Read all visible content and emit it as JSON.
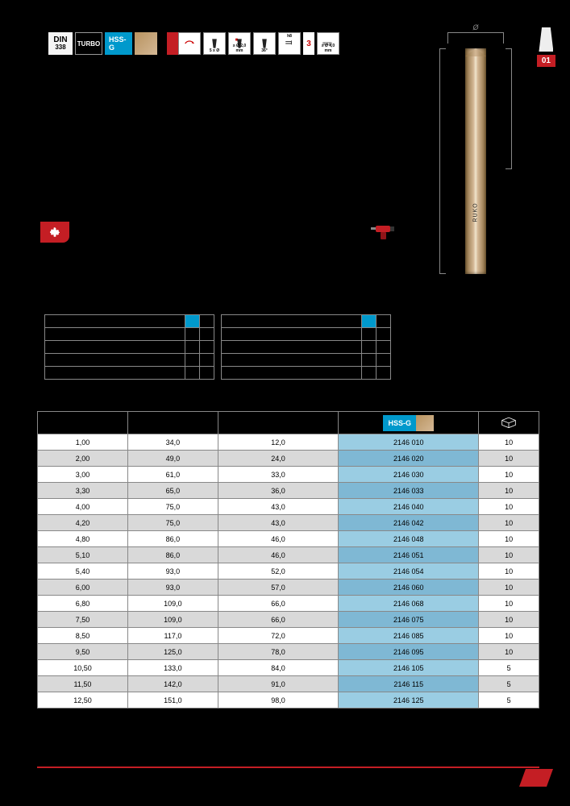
{
  "page_number": "01",
  "badges": {
    "din_top": "DIN",
    "din_bottom": "338",
    "turbo": "TURBO",
    "hssg": "HSS-G",
    "sub_5xo": "5 x Ø",
    "sub_20": "≥ Ø 2,0 mm",
    "sub_36": "36°",
    "sub_h8": "h8",
    "sub_40": "≥ Ø 4,0 mm",
    "sub_3": "3"
  },
  "drill": {
    "dia_label": "Ø",
    "brand": "RUKO"
  },
  "main_table": {
    "header_hssg": "HSS-G",
    "columns_width": [
      "18%",
      "18%",
      "24%",
      "28%",
      "12%"
    ],
    "rows": [
      {
        "d": "1,00",
        "l1": "34,0",
        "l2": "12,0",
        "ord": "2146 010",
        "pack": "10"
      },
      {
        "d": "2,00",
        "l1": "49,0",
        "l2": "24,0",
        "ord": "2146 020",
        "pack": "10"
      },
      {
        "d": "3,00",
        "l1": "61,0",
        "l2": "33,0",
        "ord": "2146 030",
        "pack": "10"
      },
      {
        "d": "3,30",
        "l1": "65,0",
        "l2": "36,0",
        "ord": "2146 033",
        "pack": "10"
      },
      {
        "d": "4,00",
        "l1": "75,0",
        "l2": "43,0",
        "ord": "2146 040",
        "pack": "10"
      },
      {
        "d": "4,20",
        "l1": "75,0",
        "l2": "43,0",
        "ord": "2146 042",
        "pack": "10"
      },
      {
        "d": "4,80",
        "l1": "86,0",
        "l2": "46,0",
        "ord": "2146 048",
        "pack": "10"
      },
      {
        "d": "5,10",
        "l1": "86,0",
        "l2": "46,0",
        "ord": "2146 051",
        "pack": "10"
      },
      {
        "d": "5,40",
        "l1": "93,0",
        "l2": "52,0",
        "ord": "2146 054",
        "pack": "10"
      },
      {
        "d": "6,00",
        "l1": "93,0",
        "l2": "57,0",
        "ord": "2146 060",
        "pack": "10"
      },
      {
        "d": "6,80",
        "l1": "109,0",
        "l2": "66,0",
        "ord": "2146 068",
        "pack": "10"
      },
      {
        "d": "7,50",
        "l1": "109,0",
        "l2": "66,0",
        "ord": "2146 075",
        "pack": "10"
      },
      {
        "d": "8,50",
        "l1": "117,0",
        "l2": "72,0",
        "ord": "2146 085",
        "pack": "10"
      },
      {
        "d": "9,50",
        "l1": "125,0",
        "l2": "78,0",
        "ord": "2146 095",
        "pack": "10"
      },
      {
        "d": "10,50",
        "l1": "133,0",
        "l2": "84,0",
        "ord": "2146 105",
        "pack": "5"
      },
      {
        "d": "11,50",
        "l1": "142,0",
        "l2": "91,0",
        "ord": "2146 115",
        "pack": "5"
      },
      {
        "d": "12,50",
        "l1": "151,0",
        "l2": "98,0",
        "ord": "2146 125",
        "pack": "5"
      }
    ]
  },
  "colors": {
    "red": "#c41e24",
    "blue": "#0099cc",
    "ord_blue": "#9acde3",
    "gold1": "#b8935f",
    "gold2": "#d4b896",
    "row_alt": "#d9d9d9",
    "border": "#888888"
  }
}
